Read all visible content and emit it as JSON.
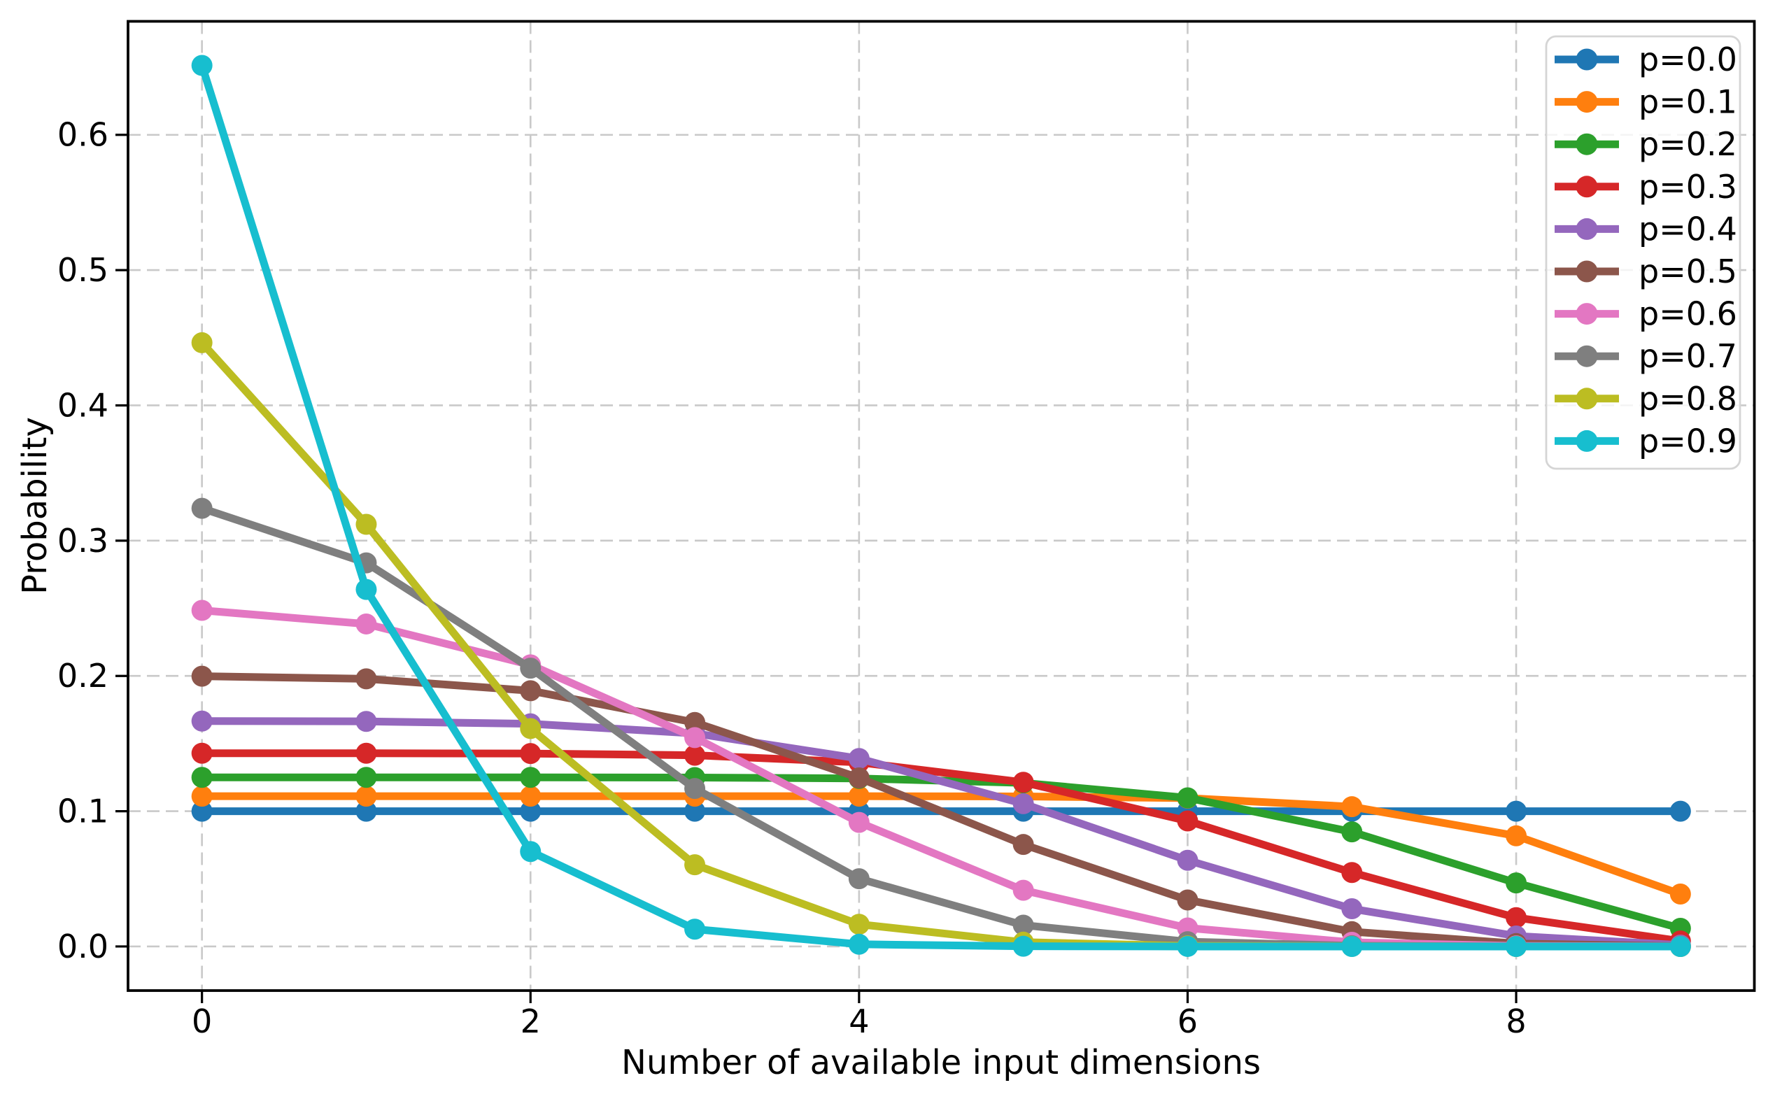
{
  "figure": {
    "background": "#ffffff",
    "spine_color": "#000000",
    "tick_color": "#000000"
  },
  "chart_data": {
    "type": "line",
    "title": "",
    "xlabel": "Number of available input dimensions",
    "ylabel": "Probability",
    "x": [
      0,
      1,
      2,
      3,
      4,
      5,
      6,
      7,
      8,
      9
    ],
    "xlim": [
      -0.45,
      9.45
    ],
    "ylim": [
      -0.0326,
      0.6839
    ],
    "xticks": [
      0,
      2,
      4,
      6,
      8
    ],
    "xtick_labels": [
      "0",
      "2",
      "4",
      "6",
      "8"
    ],
    "yticks": [
      0.0,
      0.1,
      0.2,
      0.3,
      0.4,
      0.5,
      0.6
    ],
    "ytick_labels": [
      "0.0",
      "0.1",
      "0.2",
      "0.3",
      "0.4",
      "0.5",
      "0.6"
    ],
    "grid": true,
    "grid_style": "dashed",
    "grid_color": "#c9c9c9",
    "marker": "circle",
    "legend": {
      "position": "upper right",
      "border_color": "#d5d5d5",
      "background": "#ffffff",
      "opacity": 0.8
    },
    "series": [
      {
        "name": "p=0.0",
        "color": "#1f77b4",
        "values": [
          0.1,
          0.1,
          0.1,
          0.1,
          0.1,
          0.1,
          0.1,
          0.1,
          0.1,
          0.1
        ]
      },
      {
        "name": "p=0.1",
        "color": "#ff7f0e",
        "values": [
          0.111111,
          0.111111,
          0.111111,
          0.11111,
          0.111095,
          0.110929,
          0.109689,
          0.103312,
          0.081789,
          0.038742
        ]
      },
      {
        "name": "p=0.2",
        "color": "#2ca02c",
        "values": [
          0.125,
          0.125,
          0.12499,
          0.124892,
          0.124204,
          0.120901,
          0.109891,
          0.084725,
          0.046976,
          0.013422
        ]
      },
      {
        "name": "p=0.3",
        "color": "#d62728",
        "values": [
          0.142856,
          0.142837,
          0.14263,
          0.141344,
          0.136093,
          0.12139,
          0.092802,
          0.054683,
          0.02133,
          0.004035
        ]
      },
      {
        "name": "p=0.4",
        "color": "#9467bd",
        "values": [
          0.166649,
          0.166387,
          0.164618,
          0.15754,
          0.13896,
          0.105517,
          0.063713,
          0.027882,
          0.007726,
          0.001008
        ]
      },
      {
        "name": "p=0.5",
        "color": "#8c564b",
        "values": [
          0.199805,
          0.197852,
          0.189063,
          0.165625,
          0.124609,
          0.075391,
          0.034375,
          0.010938,
          0.002148,
          0.000195
        ]
      },
      {
        "name": "p=0.6",
        "color": "#e377c2",
        "values": [
          0.248488,
          0.238411,
          0.208178,
          0.15443,
          0.091724,
          0.04156,
          0.01369,
          0.003074,
          0.000419,
          2.6e-05
        ]
      },
      {
        "name": "p=0.7",
        "color": "#7f7f7f",
        "values": [
          0.323917,
          0.283564,
          0.205739,
          0.116796,
          0.050089,
          0.015783,
          0.003531,
          0.00053,
          4.8e-05,
          2e-06
        ]
      },
      {
        "name": "p=0.8",
        "color": "#bcbd22",
        "values": [
          0.446313,
          0.312095,
          0.1611,
          0.060437,
          0.016397,
          0.003185,
          0.000432,
          3.9e-05,
          2e-06,
          0.0
        ]
      },
      {
        "name": "p=0.9",
        "color": "#17becf",
        "values": [
          0.651322,
          0.263901,
          0.07019,
          0.012795,
          0.001635,
          0.000147,
          9e-06,
          0.0,
          0.0,
          0.0
        ]
      }
    ]
  }
}
